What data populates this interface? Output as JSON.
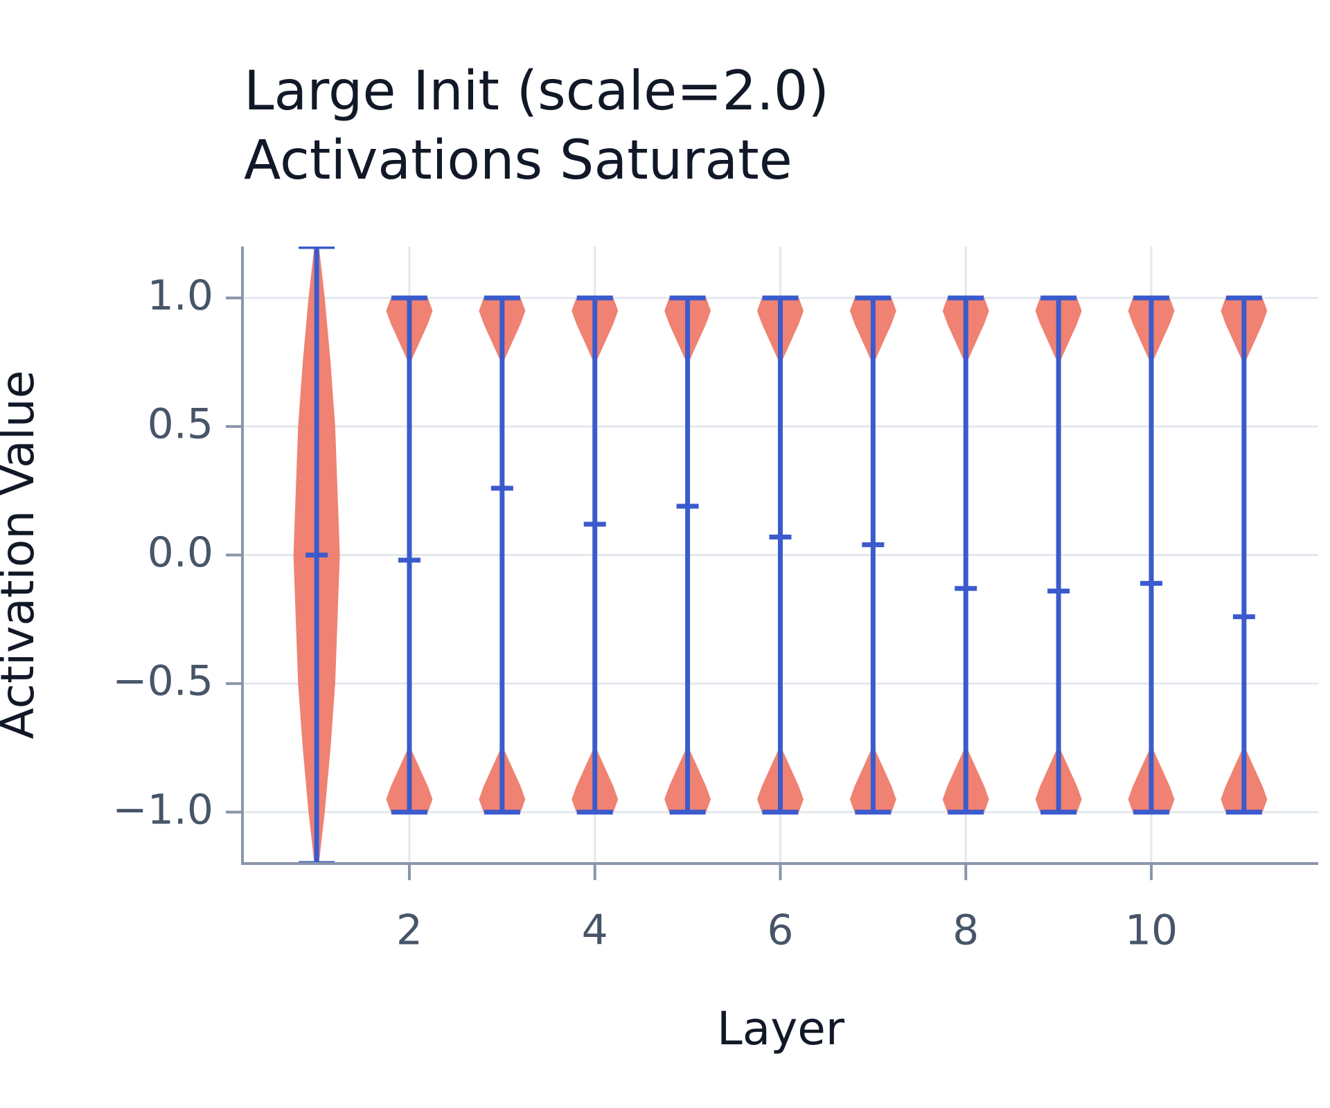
{
  "chart_data": {
    "type": "violin",
    "title": [
      "Large Init (scale=2.0)",
      "Activations Saturate"
    ],
    "x_label": "Layer",
    "y_label": "Activation Value",
    "x": [
      1,
      2,
      3,
      4,
      5,
      6,
      7,
      8,
      9,
      10,
      11
    ],
    "min": [
      -1.2,
      -1.0,
      -1.0,
      -1.0,
      -1.0,
      -1.0,
      -1.0,
      -1.0,
      -1.0,
      -1.0,
      -1.0
    ],
    "max": [
      1.2,
      1.0,
      1.0,
      1.0,
      1.0,
      1.0,
      1.0,
      1.0,
      1.0,
      1.0,
      1.0
    ],
    "mean": [
      0.0,
      -0.02,
      0.26,
      0.12,
      0.19,
      0.07,
      0.04,
      -0.13,
      -0.14,
      -0.11,
      -0.24
    ],
    "density_y": [
      -1.2,
      -1.0,
      -0.95,
      -0.9,
      -0.8,
      -0.75,
      -0.5,
      0.0,
      0.5,
      0.75,
      0.8,
      0.9,
      0.95,
      1.0,
      1.2
    ],
    "density": [
      [
        0.1,
        0.35,
        0.4,
        0.45,
        0.55,
        0.6,
        0.8,
        1.0,
        0.8,
        0.6,
        0.55,
        0.45,
        0.4,
        0.35,
        0.1
      ],
      [
        null,
        0.8,
        1.0,
        0.8,
        0.3,
        0.05,
        0.02,
        0.02,
        0.02,
        0.05,
        0.3,
        0.8,
        1.0,
        0.8,
        null
      ],
      [
        null,
        0.8,
        1.0,
        0.8,
        0.3,
        0.05,
        0.02,
        0.02,
        0.02,
        0.05,
        0.3,
        0.8,
        1.0,
        0.8,
        null
      ],
      [
        null,
        0.8,
        1.0,
        0.8,
        0.3,
        0.05,
        0.02,
        0.02,
        0.02,
        0.05,
        0.3,
        0.8,
        1.0,
        0.8,
        null
      ],
      [
        null,
        0.8,
        1.0,
        0.8,
        0.3,
        0.05,
        0.02,
        0.02,
        0.02,
        0.05,
        0.3,
        0.8,
        1.0,
        0.8,
        null
      ],
      [
        null,
        0.8,
        1.0,
        0.8,
        0.3,
        0.05,
        0.02,
        0.02,
        0.02,
        0.05,
        0.3,
        0.8,
        1.0,
        0.8,
        null
      ],
      [
        null,
        0.8,
        1.0,
        0.8,
        0.3,
        0.05,
        0.02,
        0.02,
        0.02,
        0.05,
        0.3,
        0.8,
        1.0,
        0.8,
        null
      ],
      [
        null,
        0.8,
        1.0,
        0.8,
        0.3,
        0.05,
        0.02,
        0.02,
        0.02,
        0.05,
        0.3,
        0.8,
        1.0,
        0.8,
        null
      ],
      [
        null,
        0.8,
        1.0,
        0.8,
        0.3,
        0.05,
        0.02,
        0.02,
        0.02,
        0.05,
        0.3,
        0.8,
        1.0,
        0.8,
        null
      ],
      [
        null,
        0.8,
        1.0,
        0.8,
        0.3,
        0.05,
        0.02,
        0.02,
        0.02,
        0.05,
        0.3,
        0.8,
        1.0,
        0.8,
        null
      ],
      [
        null,
        0.8,
        1.0,
        0.8,
        0.3,
        0.05,
        0.02,
        0.02,
        0.02,
        0.05,
        0.3,
        0.8,
        1.0,
        0.8,
        null
      ]
    ],
    "violin_width": 0.5,
    "violin_color": "#ee7b6a",
    "line_color": "#3b5bcc",
    "xlim": [
      0.2,
      11.8
    ],
    "ylim": [
      -1.2,
      1.2
    ],
    "xticks": [
      2,
      4,
      6,
      8,
      10
    ],
    "yticks": [
      {
        "value": -1,
        "label": "−1.0"
      },
      {
        "value": -0.5,
        "label": "−0.5"
      },
      {
        "value": 0,
        "label": "0.0"
      },
      {
        "value": 0.5,
        "label": "0.5"
      },
      {
        "value": 1,
        "label": "1.0"
      }
    ],
    "grid": true
  }
}
